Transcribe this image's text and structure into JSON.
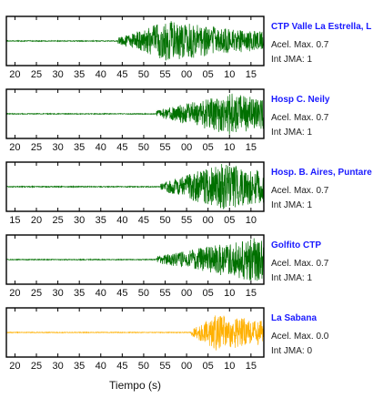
{
  "chart_data": [
    {
      "type": "line",
      "station": "CTP Valle La Estrella, L",
      "acel_label": "Acel. Max. 0.7",
      "jma_label": "Int JMA: 1",
      "tick_labels": [
        "20",
        "25",
        "30",
        "35",
        "40",
        "45",
        "50",
        "55",
        "00",
        "05",
        "10",
        "15"
      ],
      "x_start_s": 18,
      "x_end_s": 78,
      "onset_s": 44,
      "peak_s": 56,
      "amplitude": 0.85,
      "color": "#007000",
      "grid": false
    },
    {
      "type": "line",
      "station": "Hosp C. Neily",
      "acel_label": "Acel. Max. 0.7",
      "jma_label": "Int JMA: 1",
      "tick_labels": [
        "20",
        "25",
        "30",
        "35",
        "40",
        "45",
        "50",
        "55",
        "00",
        "05",
        "10",
        "15"
      ],
      "x_start_s": 18,
      "x_end_s": 78,
      "onset_s": 53,
      "peak_s": 70,
      "amplitude": 0.85,
      "color": "#007000",
      "grid": false
    },
    {
      "type": "line",
      "station": "Hosp. B. Aires, Puntare",
      "acel_label": "Acel. Max. 0.7",
      "jma_label": "Int JMA: 1",
      "tick_labels": [
        "15",
        "20",
        "25",
        "30",
        "35",
        "40",
        "45",
        "50",
        "55",
        "00",
        "05",
        "10"
      ],
      "x_start_s": 13,
      "x_end_s": 73,
      "onset_s": 49,
      "peak_s": 63,
      "amplitude": 0.95,
      "color": "#007000",
      "grid": false
    },
    {
      "type": "line",
      "station": "Golfito CTP",
      "acel_label": "Acel. Max. 0.7",
      "jma_label": "Int JMA: 1",
      "tick_labels": [
        "20",
        "25",
        "30",
        "35",
        "40",
        "45",
        "50",
        "55",
        "00",
        "05",
        "10",
        "15"
      ],
      "x_start_s": 18,
      "x_end_s": 78,
      "onset_s": 53,
      "peak_s": 76,
      "amplitude": 0.9,
      "color": "#007000",
      "grid": false
    },
    {
      "type": "line",
      "station": "La Sabana",
      "acel_label": "Acel. Max. 0.0",
      "jma_label": "Int JMA: 0",
      "tick_labels": [
        "20",
        "25",
        "30",
        "35",
        "40",
        "45",
        "50",
        "55",
        "00",
        "05",
        "10",
        "15"
      ],
      "x_start_s": 18,
      "x_end_s": 78,
      "onset_s": 61,
      "peak_s": 67,
      "amplitude": 0.75,
      "color": "#ffb000",
      "grid": false
    }
  ],
  "xlabel": "Tiempo (s)"
}
